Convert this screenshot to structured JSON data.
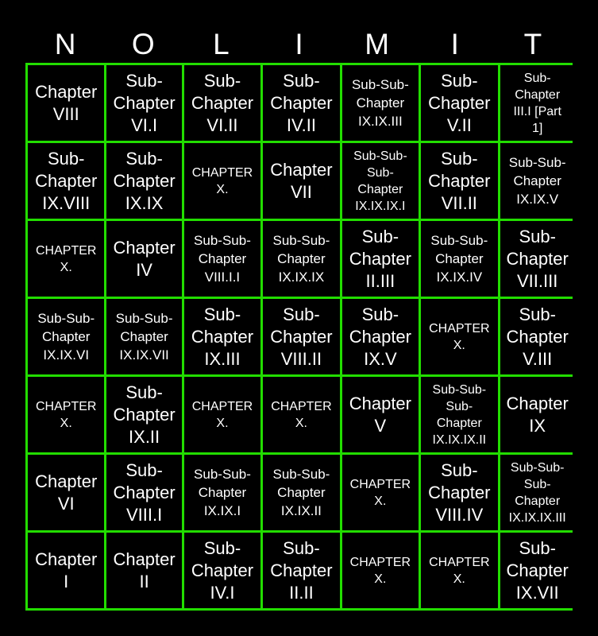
{
  "header": [
    "N",
    "O",
    "L",
    "I",
    "M",
    "I",
    "T"
  ],
  "border_color": "#22dd00",
  "cells": [
    [
      "Chapter VIII",
      "Sub-Chapter VI.I",
      "Sub-Chapter VI.II",
      "Sub-Chapter IV.II",
      "Sub-Sub-Chapter IX.IX.III",
      "Sub-Chapter V.II",
      "Sub-Chapter III.I [Part 1]"
    ],
    [
      "Sub-Chapter IX.VIII",
      "Sub-Chapter IX.IX",
      "CHAPTER X.",
      "Chapter VII",
      "Sub-Sub-Sub-Chapter IX.IX.IX.I",
      "Sub-Chapter VII.II",
      "Sub-Sub-Chapter IX.IX.V"
    ],
    [
      "CHAPTER X.",
      "Chapter IV",
      "Sub-Sub-Chapter VIII.I.I",
      "Sub-Sub-Chapter IX.IX.IX",
      "Sub-Chapter II.III",
      "Sub-Sub-Chapter IX.IX.IV",
      "Sub-Chapter VII.III"
    ],
    [
      "Sub-Sub-Chapter IX.IX.VI",
      "Sub-Sub-Chapter IX.IX.VII",
      "Sub-Chapter IX.III",
      "Sub-Chapter VIII.II",
      "Sub-Chapter IX.V",
      "CHAPTER X.",
      "Sub-Chapter V.III"
    ],
    [
      "CHAPTER X.",
      "Sub-Chapter IX.II",
      "CHAPTER X.",
      "CHAPTER X.",
      "Chapter V",
      "Sub-Sub-Sub-Chapter IX.IX.IX.II",
      "Chapter IX"
    ],
    [
      "Chapter VI",
      "Sub-Chapter VIII.I",
      "Sub-Sub-Chapter IX.IX.I",
      "Sub-Sub-Chapter IX.IX.II",
      "CHAPTER X.",
      "Sub-Chapter VIII.IV",
      "Sub-Sub-Sub-Chapter IX.IX.IX.III"
    ],
    [
      "Chapter I",
      "Chapter II",
      "Sub-Chapter IV.I",
      "Sub-Chapter II.II",
      "CHAPTER X.",
      "CHAPTER X.",
      "Sub-Chapter IX.VII"
    ]
  ]
}
